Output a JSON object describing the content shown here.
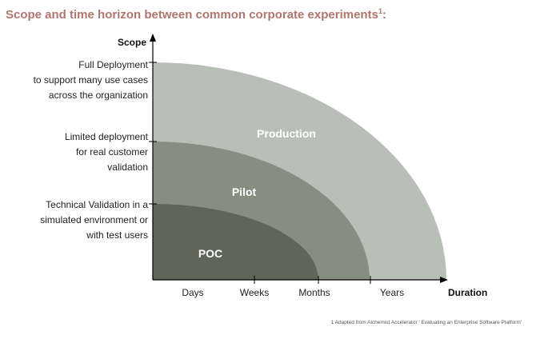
{
  "title": "Scope and time horizon between common corporate experiments",
  "title_footnote_mark": "1",
  "axes": {
    "y_title": "Scope",
    "x_title": "Duration"
  },
  "scope_levels": [
    {
      "lines": [
        "Full Deployment",
        "to support many use cases",
        "across the organization"
      ]
    },
    {
      "lines": [
        "Limited deployment",
        "for real customer",
        "validation"
      ]
    },
    {
      "lines": [
        "Technical Validation in a",
        "simulated environment or",
        "with test users"
      ]
    }
  ],
  "duration_ticks": [
    "Days",
    "Weeks",
    "Months",
    "Years"
  ],
  "regions": [
    {
      "label": "Production",
      "color": "#b8bfb6"
    },
    {
      "label": "Pilot",
      "color": "#868e82"
    },
    {
      "label": "POC",
      "color": "#5f6559"
    }
  ],
  "footnote": "1 Adapted from Alchemist Accelerator ' Evaluating an Enterprise Software Platform'"
}
